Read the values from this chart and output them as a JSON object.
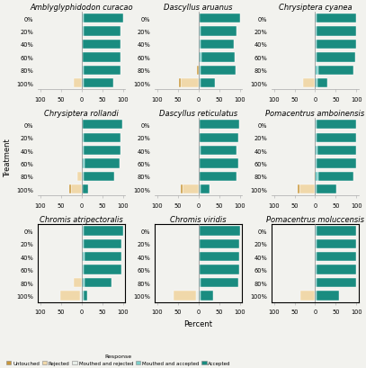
{
  "species": [
    [
      "Amblyglyphidodon curacao",
      "Dascyllus aruanus",
      "Chrysiptera cyanea"
    ],
    [
      "Chrysiptera rollandi",
      "Dascyllus reticulatus",
      "Pomacentrus amboinensis"
    ],
    [
      "Chromis atripectoralis",
      "Chromis viridis",
      "Pomacentrus moluccensis"
    ]
  ],
  "treatments": [
    "0%",
    "20%",
    "40%",
    "60%",
    "80%",
    "100%"
  ],
  "categories": [
    "Untouched",
    "Rejected",
    "Mouthed and rejected",
    "Mouthed and accepted",
    "Accepted"
  ],
  "colors": [
    "#c8973a",
    "#f0d8aa",
    "#e8ede8",
    "#7ecfca",
    "#1a8c80"
  ],
  "data": {
    "Amblyglyphidodon curacao": {
      "Untouched": [
        0,
        0,
        0,
        0,
        0,
        0
      ],
      "Rejected": [
        0,
        0,
        0,
        0,
        0,
        18
      ],
      "Mouthed and rejected": [
        0,
        0,
        0,
        0,
        0,
        0
      ],
      "Mouthed and accepted": [
        5,
        5,
        3,
        2,
        5,
        5
      ],
      "Accepted": [
        95,
        90,
        92,
        93,
        90,
        72
      ]
    },
    "Dascyllus aruanus": {
      "Untouched": [
        0,
        0,
        0,
        0,
        3,
        5
      ],
      "Rejected": [
        0,
        0,
        0,
        0,
        0,
        42
      ],
      "Mouthed and rejected": [
        0,
        0,
        0,
        0,
        0,
        0
      ],
      "Mouthed and accepted": [
        3,
        5,
        5,
        8,
        5,
        5
      ],
      "Accepted": [
        97,
        88,
        80,
        80,
        85,
        35
      ]
    },
    "Chrysiptera cyanea": {
      "Untouched": [
        0,
        0,
        0,
        0,
        0,
        0
      ],
      "Rejected": [
        0,
        0,
        0,
        0,
        0,
        30
      ],
      "Mouthed and rejected": [
        0,
        0,
        0,
        0,
        0,
        0
      ],
      "Mouthed and accepted": [
        3,
        3,
        3,
        3,
        8,
        5
      ],
      "Accepted": [
        97,
        95,
        95,
        93,
        85,
        25
      ]
    },
    "Chrysiptera rollandi": {
      "Untouched": [
        0,
        0,
        0,
        0,
        0,
        5
      ],
      "Rejected": [
        0,
        0,
        0,
        0,
        10,
        25
      ],
      "Mouthed and rejected": [
        0,
        0,
        0,
        0,
        0,
        0
      ],
      "Mouthed and accepted": [
        3,
        5,
        5,
        8,
        5,
        3
      ],
      "Accepted": [
        95,
        90,
        90,
        85,
        75,
        12
      ]
    },
    "Dascyllus reticulatus": {
      "Untouched": [
        0,
        0,
        0,
        0,
        0,
        5
      ],
      "Rejected": [
        0,
        0,
        0,
        0,
        0,
        38
      ],
      "Mouthed and rejected": [
        0,
        0,
        0,
        0,
        0,
        0
      ],
      "Mouthed and accepted": [
        3,
        3,
        5,
        3,
        3,
        5
      ],
      "Accepted": [
        95,
        93,
        88,
        93,
        90,
        22
      ]
    },
    "Pomacentrus amboinensis": {
      "Untouched": [
        0,
        0,
        0,
        0,
        0,
        5
      ],
      "Rejected": [
        0,
        0,
        0,
        0,
        3,
        38
      ],
      "Mouthed and rejected": [
        0,
        0,
        0,
        0,
        0,
        0
      ],
      "Mouthed and accepted": [
        3,
        3,
        5,
        3,
        8,
        3
      ],
      "Accepted": [
        97,
        95,
        95,
        95,
        85,
        48
      ]
    },
    "Chromis atripectoralis": {
      "Untouched": [
        0,
        0,
        0,
        0,
        0,
        0
      ],
      "Rejected": [
        0,
        0,
        0,
        0,
        18,
        48
      ],
      "Mouthed and rejected": [
        0,
        0,
        0,
        0,
        0,
        3
      ],
      "Mouthed and accepted": [
        5,
        5,
        8,
        5,
        8,
        5
      ],
      "Accepted": [
        95,
        92,
        88,
        92,
        65,
        8
      ]
    },
    "Chromis viridis": {
      "Untouched": [
        0,
        0,
        0,
        0,
        0,
        0
      ],
      "Rejected": [
        0,
        0,
        0,
        0,
        0,
        55
      ],
      "Mouthed and rejected": [
        0,
        0,
        0,
        0,
        0,
        5
      ],
      "Mouthed and accepted": [
        3,
        3,
        3,
        3,
        5,
        5
      ],
      "Accepted": [
        97,
        95,
        95,
        95,
        92,
        30
      ]
    },
    "Pomacentrus moluccensis": {
      "Untouched": [
        0,
        0,
        0,
        0,
        0,
        0
      ],
      "Rejected": [
        0,
        0,
        0,
        0,
        0,
        35
      ],
      "Mouthed and rejected": [
        0,
        0,
        0,
        0,
        0,
        0
      ],
      "Mouthed and accepted": [
        3,
        3,
        3,
        3,
        3,
        3
      ],
      "Accepted": [
        97,
        97,
        97,
        97,
        97,
        55
      ]
    }
  },
  "xlim": [
    -105,
    105
  ],
  "xticks": [
    -100,
    -50,
    0,
    50,
    100
  ],
  "xticklabels": [
    "100",
    "50",
    "0",
    "50",
    "100"
  ],
  "ylabel": "Treatment",
  "xlabel": "Percent",
  "background_color": "#f2f2ee",
  "bar_height": 0.72,
  "title_fontsize": 6.0,
  "tick_fontsize": 4.8,
  "label_fontsize": 6.0
}
